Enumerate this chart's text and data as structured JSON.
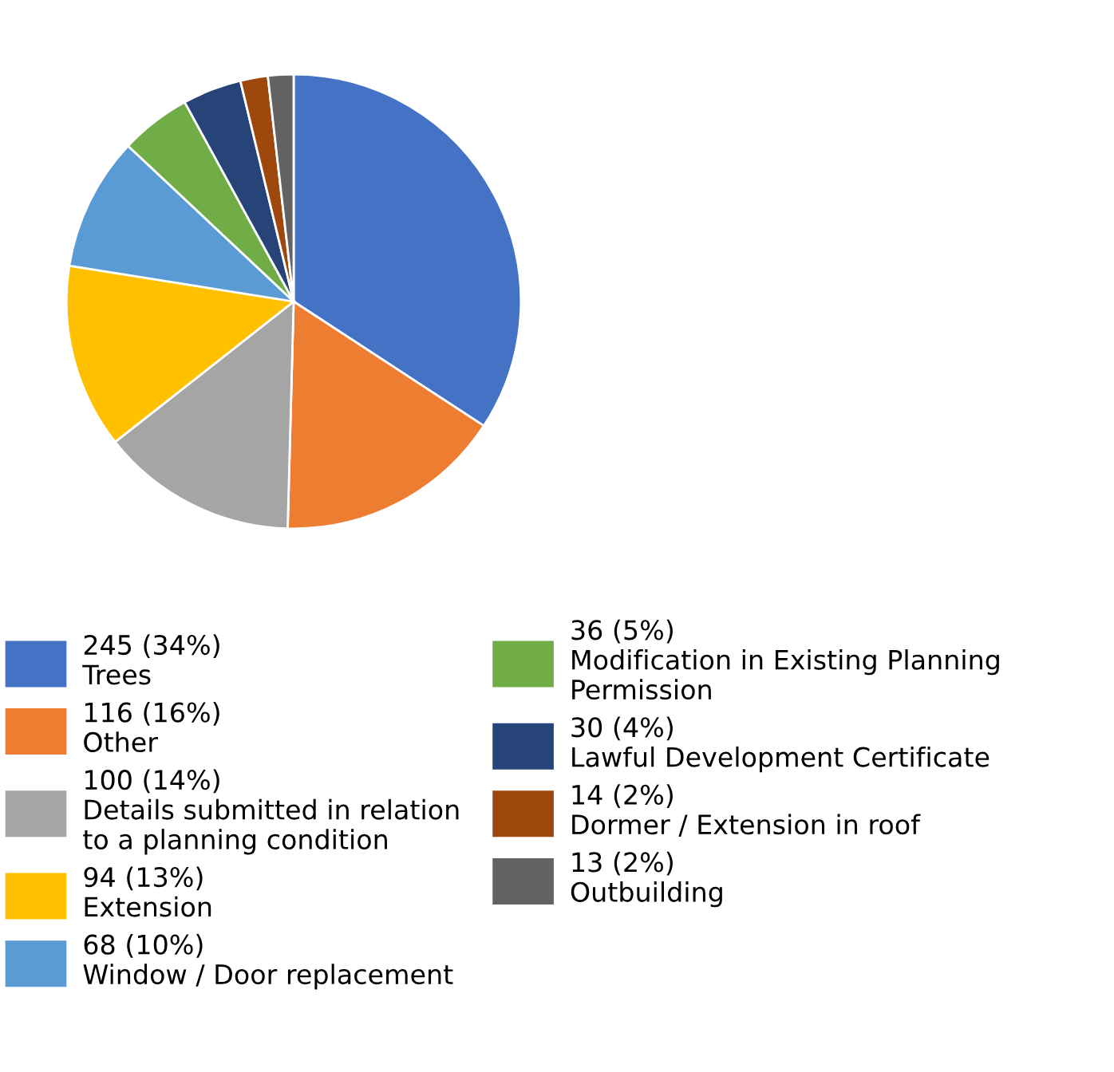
{
  "chart_data": {
    "type": "pie",
    "categories": [
      "Trees",
      "Other",
      "Details submitted in relation\nto a planning condition",
      "Extension",
      "Window / Door replacement",
      "Modification in Existing Planning\nPermission",
      "Lawful Development Certificate",
      "Dormer / Extension in roof",
      "Outbuilding"
    ],
    "values": [
      245,
      116,
      100,
      94,
      68,
      36,
      30,
      14,
      13
    ],
    "value_labels": [
      "245 (34%)",
      "116 (16%)",
      "100 (14%)",
      "94 (13%)",
      "68 (10%)",
      "36 (5%)",
      "30 (4%)",
      "14 (2%)",
      "13 (2%)"
    ],
    "colors": [
      "#4472c4",
      "#ed7d31",
      "#a5a5a5",
      "#ffc000",
      "#5b9bd5",
      "#70ad47",
      "#264478",
      "#9e480e",
      "#636363"
    ],
    "legend": "bottom"
  }
}
